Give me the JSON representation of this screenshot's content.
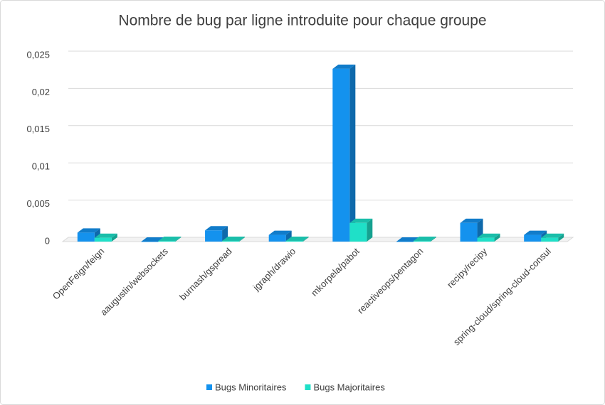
{
  "chart_data": {
    "type": "bar3d",
    "title": "Nombre de bug par ligne introduite pour chaque groupe",
    "categories": [
      "OpenFeign/feign",
      "aaugustin/websockets",
      "burnash/gspread",
      "jgraph/drawio",
      "mkorpela/pabot",
      "reactiveops/pentagon",
      "recipy/recipy",
      "spring-cloud/spring-cloud-consul"
    ],
    "series": [
      {
        "name": "Bugs Minoritaires",
        "color": "#1492ee",
        "values": [
          0.0012,
          0,
          0.0015,
          0.0009,
          0.0232,
          0,
          0.0025,
          0.0009
        ]
      },
      {
        "name": "Bugs Majoritaires",
        "color": "#1fe0c8",
        "values": [
          0.0005,
          0.0001,
          0.0001,
          0.0001,
          0.0025,
          0.0001,
          0.0005,
          0.0005
        ]
      }
    ],
    "ylim": [
      0,
      0.025
    ],
    "yticks": [
      0,
      {
        "value": 0.005,
        "label": "0,005"
      },
      {
        "value": 0.01,
        "label": "0,01"
      },
      {
        "value": 0.015,
        "label": "0,015"
      },
      {
        "value": 0.02,
        "label": "0,02"
      },
      {
        "value": 0.025,
        "label": "0,025"
      }
    ],
    "grid": true,
    "legend": "bottom"
  }
}
